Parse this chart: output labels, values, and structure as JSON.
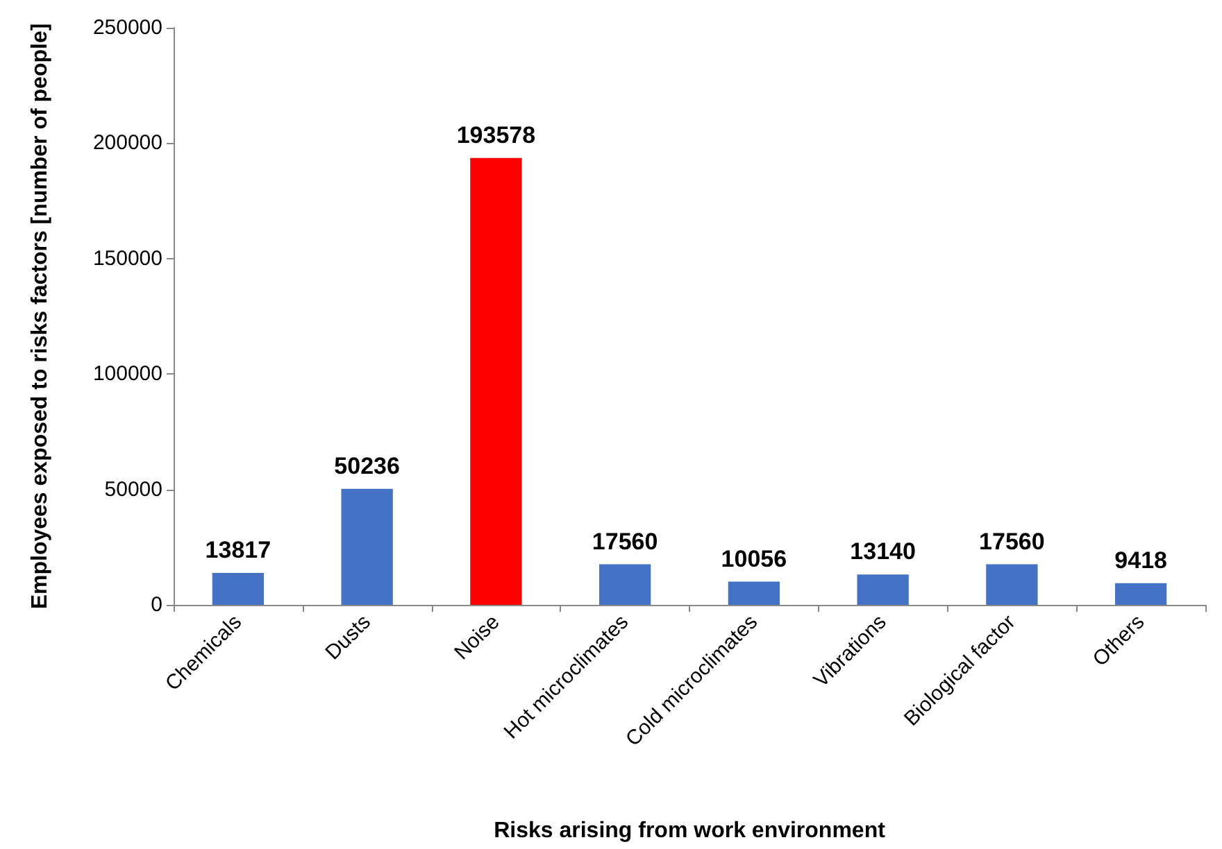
{
  "chart_data": {
    "type": "bar",
    "xlabel": "Risks arising from work environment",
    "ylabel": "Employees exposed to risks factors [number of people]",
    "categories": [
      "Chemicals",
      "Dusts",
      "Noise",
      "Hot microclimates",
      "Cold microclimates",
      "Vibrations",
      "Biological factor",
      "Others"
    ],
    "values": [
      13817,
      50236,
      193578,
      17560,
      10056,
      13140,
      17560,
      9418
    ],
    "colors": [
      "#4472c4",
      "#4472c4",
      "#ff0000",
      "#4472c4",
      "#4472c4",
      "#4472c4",
      "#4472c4",
      "#4472c4"
    ],
    "ylim": [
      0,
      250000
    ],
    "yticks": [
      0,
      50000,
      100000,
      150000,
      200000,
      250000
    ],
    "data_labels": true
  }
}
